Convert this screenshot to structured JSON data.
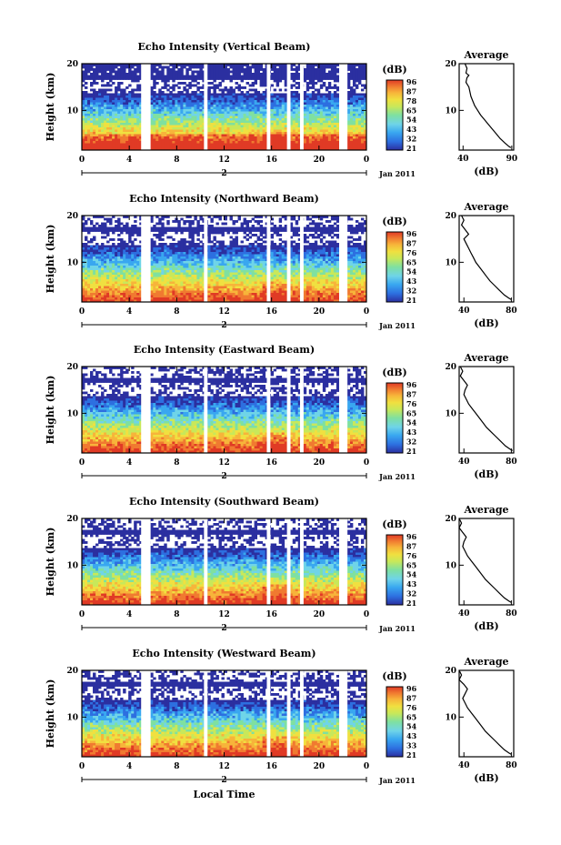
{
  "chart_data": [
    {
      "type": "heatmap",
      "title": "Echo Intensity (Vertical Beam)",
      "ylabel": "Height (km)",
      "x_ticks": [
        "0",
        "4",
        "8",
        "12",
        "16",
        "20",
        "0"
      ],
      "y_ticks": [
        "20",
        "10"
      ],
      "date_label": "Jan 2011",
      "day_label": "2",
      "colorbar": {
        "label": "(dB)",
        "ticks": [
          "96",
          "87",
          "78",
          "65",
          "54",
          "43",
          "32",
          "21"
        ]
      },
      "data_gaps_hours": [
        [
          5.0,
          5.8
        ],
        [
          10.3,
          10.6
        ],
        [
          15.6,
          15.9
        ],
        [
          17.3,
          17.6
        ],
        [
          18.4,
          18.7
        ],
        [
          21.7,
          22.4
        ]
      ],
      "average_profile": {
        "title": "Average",
        "xlabel": "(dB)",
        "x_ticks": [
          "40",
          "90"
        ],
        "y_ticks": [
          "20",
          "10"
        ],
        "points": [
          [
            42,
            20
          ],
          [
            44,
            19
          ],
          [
            43,
            18
          ],
          [
            46,
            17.5
          ],
          [
            44,
            17
          ],
          [
            43,
            16
          ],
          [
            46,
            15
          ],
          [
            47,
            14
          ],
          [
            48,
            13
          ],
          [
            50,
            12
          ],
          [
            52,
            11
          ],
          [
            55,
            10
          ],
          [
            58,
            9
          ],
          [
            62,
            8
          ],
          [
            66,
            7
          ],
          [
            70,
            6
          ],
          [
            74,
            5
          ],
          [
            78,
            4
          ],
          [
            83,
            3
          ],
          [
            87,
            2.3
          ],
          [
            89,
            2
          ]
        ]
      }
    },
    {
      "type": "heatmap",
      "title": "Echo Intensity (Northward Beam)",
      "ylabel": "Height (km)",
      "x_ticks": [
        "0",
        "4",
        "8",
        "12",
        "16",
        "20",
        "0"
      ],
      "y_ticks": [
        "20",
        "10"
      ],
      "date_label": "Jan 2011",
      "day_label": "2",
      "colorbar": {
        "label": "(dB)",
        "ticks": [
          "96",
          "87",
          "76",
          "65",
          "54",
          "43",
          "32",
          "21"
        ]
      },
      "data_gaps_hours": [
        [
          5.0,
          5.8
        ],
        [
          10.3,
          10.6
        ],
        [
          15.6,
          15.9
        ],
        [
          17.3,
          17.6
        ],
        [
          18.4,
          18.7
        ],
        [
          21.7,
          22.4
        ]
      ],
      "average_profile": {
        "title": "Average",
        "xlabel": "(dB)",
        "x_ticks": [
          "40",
          "80"
        ],
        "y_ticks": [
          "20",
          "10"
        ],
        "points": [
          [
            38,
            20
          ],
          [
            40,
            19
          ],
          [
            38,
            18
          ],
          [
            41,
            17
          ],
          [
            44,
            16
          ],
          [
            42,
            15.5
          ],
          [
            40,
            15
          ],
          [
            42,
            14
          ],
          [
            44,
            13
          ],
          [
            46,
            12
          ],
          [
            48,
            11
          ],
          [
            50,
            10
          ],
          [
            53,
            9
          ],
          [
            56,
            8
          ],
          [
            59,
            7
          ],
          [
            62,
            6
          ],
          [
            66,
            5
          ],
          [
            70,
            4
          ],
          [
            74,
            3
          ],
          [
            78,
            2.3
          ],
          [
            80,
            2
          ]
        ]
      }
    },
    {
      "type": "heatmap",
      "title": "Echo Intensity (Eastward Beam)",
      "ylabel": "Height (km)",
      "x_ticks": [
        "0",
        "4",
        "8",
        "12",
        "16",
        "20",
        "0"
      ],
      "y_ticks": [
        "20",
        "10"
      ],
      "date_label": "Jan 2011",
      "day_label": "2",
      "colorbar": {
        "label": "(dB)",
        "ticks": [
          "96",
          "87",
          "76",
          "65",
          "54",
          "43",
          "32",
          "21"
        ]
      },
      "data_gaps_hours": [
        [
          5.0,
          5.8
        ],
        [
          10.3,
          10.6
        ],
        [
          15.6,
          15.9
        ],
        [
          17.3,
          17.6
        ],
        [
          18.4,
          18.7
        ],
        [
          21.7,
          22.4
        ]
      ],
      "average_profile": {
        "title": "Average",
        "xlabel": "(dB)",
        "x_ticks": [
          "40",
          "80"
        ],
        "y_ticks": [
          "20",
          "10"
        ],
        "points": [
          [
            37,
            20
          ],
          [
            39,
            19
          ],
          [
            37,
            18
          ],
          [
            40,
            17
          ],
          [
            43,
            16
          ],
          [
            41,
            15
          ],
          [
            40,
            14
          ],
          [
            42,
            13
          ],
          [
            44,
            12
          ],
          [
            47,
            11
          ],
          [
            50,
            10
          ],
          [
            53,
            9
          ],
          [
            56,
            8
          ],
          [
            59,
            7
          ],
          [
            63,
            6
          ],
          [
            67,
            5
          ],
          [
            71,
            4
          ],
          [
            75,
            3
          ],
          [
            79,
            2.3
          ],
          [
            81,
            2
          ]
        ]
      }
    },
    {
      "type": "heatmap",
      "title": "Echo Intensity (Southward Beam)",
      "ylabel": "Height (km)",
      "x_ticks": [
        "0",
        "4",
        "8",
        "12",
        "16",
        "20",
        "0"
      ],
      "y_ticks": [
        "20",
        "10"
      ],
      "date_label": "Jan 2011",
      "day_label": "2",
      "colorbar": {
        "label": "(dB)",
        "ticks": [
          "96",
          "87",
          "76",
          "65",
          "54",
          "43",
          "32",
          "21"
        ]
      },
      "data_gaps_hours": [
        [
          5.0,
          5.8
        ],
        [
          10.3,
          10.6
        ],
        [
          15.6,
          15.9
        ],
        [
          17.3,
          17.6
        ],
        [
          18.4,
          18.7
        ],
        [
          21.7,
          22.4
        ]
      ],
      "average_profile": {
        "title": "Average",
        "xlabel": "(dB)",
        "x_ticks": [
          "40",
          "80"
        ],
        "y_ticks": [
          "20",
          "10"
        ],
        "points": [
          [
            36,
            20
          ],
          [
            38,
            19
          ],
          [
            36,
            18
          ],
          [
            39,
            17
          ],
          [
            42,
            16
          ],
          [
            40,
            15
          ],
          [
            39,
            14
          ],
          [
            41,
            13
          ],
          [
            43,
            12
          ],
          [
            46,
            11
          ],
          [
            49,
            10
          ],
          [
            52,
            9
          ],
          [
            55,
            8
          ],
          [
            58,
            7
          ],
          [
            62,
            6
          ],
          [
            66,
            5
          ],
          [
            70,
            4
          ],
          [
            74,
            3
          ],
          [
            78,
            2.3
          ],
          [
            80,
            2
          ]
        ]
      }
    },
    {
      "type": "heatmap",
      "title": "Echo Intensity (Westward Beam)",
      "ylabel": "Height (km)",
      "xlabel": "Local Time",
      "x_ticks": [
        "0",
        "4",
        "8",
        "12",
        "16",
        "20",
        "0"
      ],
      "y_ticks": [
        "20",
        "10"
      ],
      "date_label": "Jan 2011",
      "day_label": "2",
      "colorbar": {
        "label": "(dB)",
        "ticks": [
          "96",
          "87",
          "76",
          "65",
          "54",
          "43",
          "33",
          "21"
        ]
      },
      "data_gaps_hours": [
        [
          5.0,
          5.8
        ],
        [
          10.3,
          10.6
        ],
        [
          15.6,
          15.9
        ],
        [
          17.3,
          17.6
        ],
        [
          18.4,
          18.7
        ],
        [
          21.7,
          22.4
        ]
      ],
      "average_profile": {
        "title": "Average",
        "xlabel": "(dB)",
        "x_ticks": [
          "40",
          "80"
        ],
        "y_ticks": [
          "20",
          "10"
        ],
        "points": [
          [
            36,
            20
          ],
          [
            38,
            19
          ],
          [
            36,
            18
          ],
          [
            40,
            17
          ],
          [
            43,
            16
          ],
          [
            41,
            15
          ],
          [
            39,
            14
          ],
          [
            41,
            13
          ],
          [
            43,
            12
          ],
          [
            46,
            11
          ],
          [
            49,
            10
          ],
          [
            52,
            9
          ],
          [
            55,
            8
          ],
          [
            58,
            7
          ],
          [
            62,
            6
          ],
          [
            66,
            5
          ],
          [
            70,
            4
          ],
          [
            74,
            3
          ],
          [
            78,
            2.3
          ],
          [
            80,
            2
          ]
        ]
      }
    }
  ],
  "colors": {
    "scale": [
      "#2b2fa0",
      "#2d6fe0",
      "#39a7f0",
      "#6fd4e8",
      "#7fe0a0",
      "#c8e85a",
      "#f0e040",
      "#f7b43a",
      "#f07a30",
      "#e03a25"
    ]
  }
}
